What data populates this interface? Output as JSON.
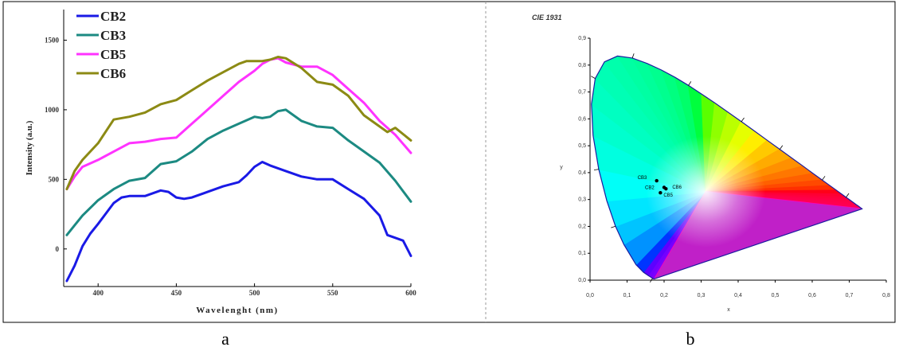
{
  "panels": {
    "a_label": "a",
    "b_label": "b"
  },
  "chart_data": [
    {
      "type": "line",
      "panel": "a",
      "xlabel": "Wavelenght (nm)",
      "ylabel": "Intensity (a.u.)",
      "xlim": [
        378,
        600
      ],
      "ylim": [
        -270,
        1720
      ],
      "xticks": [
        400,
        450,
        500,
        550,
        600
      ],
      "yticks": [
        0,
        500,
        1000,
        1500
      ],
      "legend_position": "top-left",
      "series": [
        {
          "name": "CB2",
          "color": "#1a1ae6",
          "x": [
            380,
            385,
            390,
            395,
            400,
            410,
            415,
            420,
            430,
            440,
            445,
            450,
            455,
            460,
            470,
            480,
            490,
            495,
            500,
            505,
            510,
            520,
            530,
            540,
            550,
            560,
            570,
            580,
            585,
            590,
            595,
            600
          ],
          "y": [
            -230,
            -120,
            20,
            110,
            180,
            330,
            370,
            380,
            380,
            420,
            410,
            370,
            360,
            370,
            410,
            450,
            480,
            530,
            590,
            625,
            600,
            560,
            520,
            500,
            500,
            430,
            360,
            240,
            100,
            80,
            60,
            -50
          ]
        },
        {
          "name": "CB3",
          "color": "#1c8a82",
          "x": [
            380,
            385,
            390,
            400,
            410,
            420,
            430,
            440,
            450,
            460,
            470,
            480,
            490,
            500,
            505,
            510,
            515,
            520,
            530,
            540,
            550,
            560,
            570,
            580,
            590,
            600
          ],
          "y": [
            100,
            170,
            240,
            350,
            430,
            490,
            510,
            610,
            630,
            700,
            790,
            850,
            900,
            950,
            940,
            950,
            990,
            1000,
            920,
            880,
            870,
            780,
            700,
            620,
            490,
            340
          ]
        },
        {
          "name": "CB5",
          "color": "#ff33ff",
          "x": [
            380,
            385,
            390,
            400,
            410,
            420,
            430,
            440,
            450,
            460,
            470,
            480,
            490,
            500,
            505,
            510,
            515,
            520,
            530,
            540,
            550,
            560,
            570,
            580,
            590,
            600
          ],
          "y": [
            430,
            520,
            590,
            640,
            700,
            760,
            770,
            790,
            800,
            900,
            1000,
            1100,
            1200,
            1280,
            1330,
            1360,
            1370,
            1340,
            1310,
            1310,
            1250,
            1150,
            1050,
            920,
            820,
            690
          ]
        },
        {
          "name": "CB6",
          "color": "#8c8a14",
          "x": [
            380,
            385,
            390,
            400,
            410,
            420,
            430,
            440,
            450,
            460,
            470,
            480,
            490,
            495,
            500,
            505,
            510,
            515,
            520,
            530,
            540,
            550,
            560,
            570,
            580,
            585,
            590,
            600
          ],
          "y": [
            430,
            560,
            640,
            760,
            930,
            950,
            980,
            1040,
            1070,
            1140,
            1210,
            1270,
            1330,
            1350,
            1350,
            1350,
            1360,
            1380,
            1370,
            1300,
            1200,
            1180,
            1100,
            960,
            880,
            840,
            870,
            780
          ]
        }
      ]
    },
    {
      "type": "scatter",
      "panel": "b",
      "title": "CIE 1931",
      "xlabel": "x",
      "ylabel": "y",
      "xlim": [
        0,
        0.8
      ],
      "ylim": [
        0,
        0.9
      ],
      "xticks": [
        "0,0",
        "0,1",
        "0,2",
        "0,3",
        "0,4",
        "0,5",
        "0,6",
        "0,7",
        "0,8"
      ],
      "yticks": [
        "0,0",
        "0,1",
        "0,2",
        "0,3",
        "0,4",
        "0,5",
        "0,6",
        "0,7",
        "0,8",
        "0,9"
      ],
      "points": [
        {
          "label": "CB3",
          "x": 0.18,
          "y": 0.37
        },
        {
          "label": "CB2",
          "x": 0.2,
          "y": 0.345
        },
        {
          "label": "CB6",
          "x": 0.205,
          "y": 0.34
        },
        {
          "label": "CB5",
          "x": 0.19,
          "y": 0.325
        }
      ]
    }
  ]
}
